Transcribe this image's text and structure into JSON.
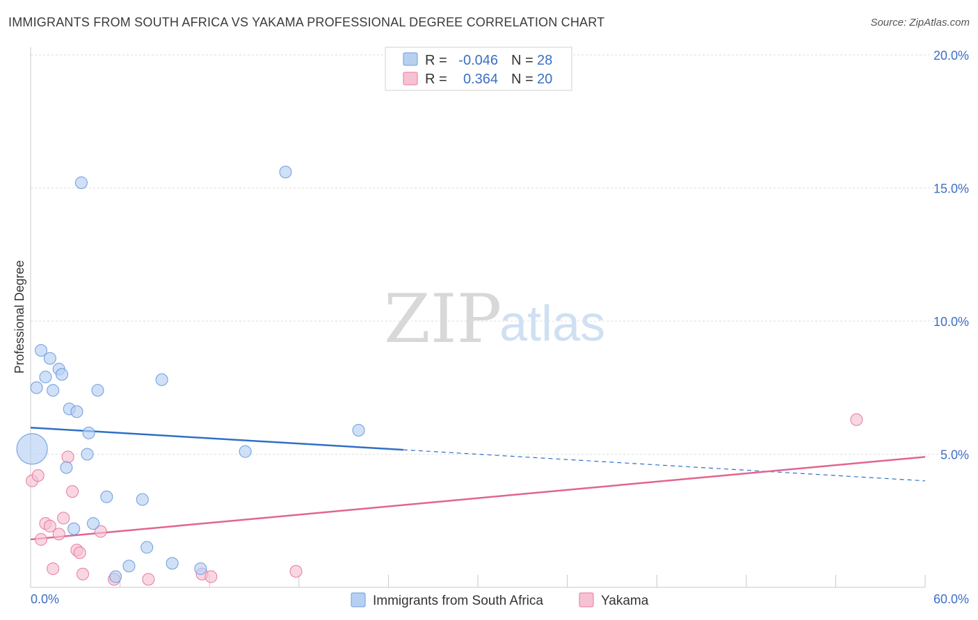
{
  "header": {
    "title": "IMMIGRANTS FROM SOUTH AFRICA VS YAKAMA PROFESSIONAL DEGREE CORRELATION CHART",
    "source": "Source: ZipAtlas.com"
  },
  "watermark": {
    "zip": "ZIP",
    "atlas": "atlas"
  },
  "legend": {
    "rows": [
      {
        "r_label": "R =",
        "r_value": "-0.046",
        "n_label": "N =",
        "n_value": "28"
      },
      {
        "r_label": "R =",
        "r_value": "0.364",
        "n_label": "N =",
        "n_value": "20"
      }
    ]
  },
  "chart_data": {
    "type": "scatter",
    "title": "IMMIGRANTS FROM SOUTH AFRICA VS YAKAMA PROFESSIONAL DEGREE CORRELATION CHART",
    "xlabel": "",
    "ylabel": "Professional Degree",
    "xlim": [
      0,
      60
    ],
    "ylim": [
      0,
      20
    ],
    "x_tick_labels": [
      "0.0%",
      "60.0%"
    ],
    "y_ticks": [
      5,
      10,
      15,
      20
    ],
    "y_tick_labels": [
      "5.0%",
      "10.0%",
      "15.0%",
      "20.0%"
    ],
    "grid": true,
    "legend_position": "bottom",
    "series": [
      {
        "name": "Immigrants from South Africa",
        "color": "#6a9de0",
        "fill": "#b7d0f2",
        "r": -0.046,
        "n": 28,
        "trend": {
          "x0": 0,
          "y0": 6.0,
          "x_solid_end": 25,
          "x1": 60,
          "y1": 4.0
        },
        "points": [
          {
            "x": 0.1,
            "y": 5.2,
            "big": true
          },
          {
            "x": 0.4,
            "y": 7.5
          },
          {
            "x": 0.7,
            "y": 8.9
          },
          {
            "x": 1.0,
            "y": 7.9
          },
          {
            "x": 1.3,
            "y": 8.6
          },
          {
            "x": 1.5,
            "y": 7.4
          },
          {
            "x": 1.9,
            "y": 8.2
          },
          {
            "x": 2.1,
            "y": 8.0
          },
          {
            "x": 2.4,
            "y": 4.5
          },
          {
            "x": 2.6,
            "y": 6.7
          },
          {
            "x": 3.1,
            "y": 6.6
          },
          {
            "x": 2.9,
            "y": 2.2
          },
          {
            "x": 3.4,
            "y": 15.2
          },
          {
            "x": 3.8,
            "y": 5.0
          },
          {
            "x": 3.9,
            "y": 5.8
          },
          {
            "x": 4.2,
            "y": 2.4
          },
          {
            "x": 4.5,
            "y": 7.4
          },
          {
            "x": 5.1,
            "y": 3.4
          },
          {
            "x": 5.7,
            "y": 0.4
          },
          {
            "x": 6.6,
            "y": 0.8
          },
          {
            "x": 7.5,
            "y": 3.3
          },
          {
            "x": 7.8,
            "y": 1.5
          },
          {
            "x": 8.8,
            "y": 7.8
          },
          {
            "x": 9.5,
            "y": 0.9
          },
          {
            "x": 11.4,
            "y": 0.7
          },
          {
            "x": 14.4,
            "y": 5.1
          },
          {
            "x": 17.1,
            "y": 15.6
          },
          {
            "x": 22.0,
            "y": 5.9
          }
        ]
      },
      {
        "name": "Yakama",
        "color": "#e8779e",
        "fill": "#f6c2d3",
        "r": 0.364,
        "n": 20,
        "trend": {
          "x0": 0,
          "y0": 1.8,
          "x1": 60,
          "y1": 4.9
        },
        "points": [
          {
            "x": 0.1,
            "y": 4.0
          },
          {
            "x": 0.5,
            "y": 4.2
          },
          {
            "x": 0.7,
            "y": 1.8
          },
          {
            "x": 1.0,
            "y": 2.4
          },
          {
            "x": 1.3,
            "y": 2.3
          },
          {
            "x": 1.5,
            "y": 0.7
          },
          {
            "x": 1.9,
            "y": 2.0
          },
          {
            "x": 2.2,
            "y": 2.6
          },
          {
            "x": 2.5,
            "y": 4.9
          },
          {
            "x": 2.8,
            "y": 3.6
          },
          {
            "x": 3.1,
            "y": 1.4
          },
          {
            "x": 3.3,
            "y": 1.3
          },
          {
            "x": 3.5,
            "y": 0.5
          },
          {
            "x": 4.7,
            "y": 2.1
          },
          {
            "x": 5.6,
            "y": 0.3
          },
          {
            "x": 7.9,
            "y": 0.3
          },
          {
            "x": 11.5,
            "y": 0.5
          },
          {
            "x": 12.1,
            "y": 0.4
          },
          {
            "x": 17.8,
            "y": 0.6
          },
          {
            "x": 55.4,
            "y": 6.3
          }
        ]
      }
    ]
  }
}
